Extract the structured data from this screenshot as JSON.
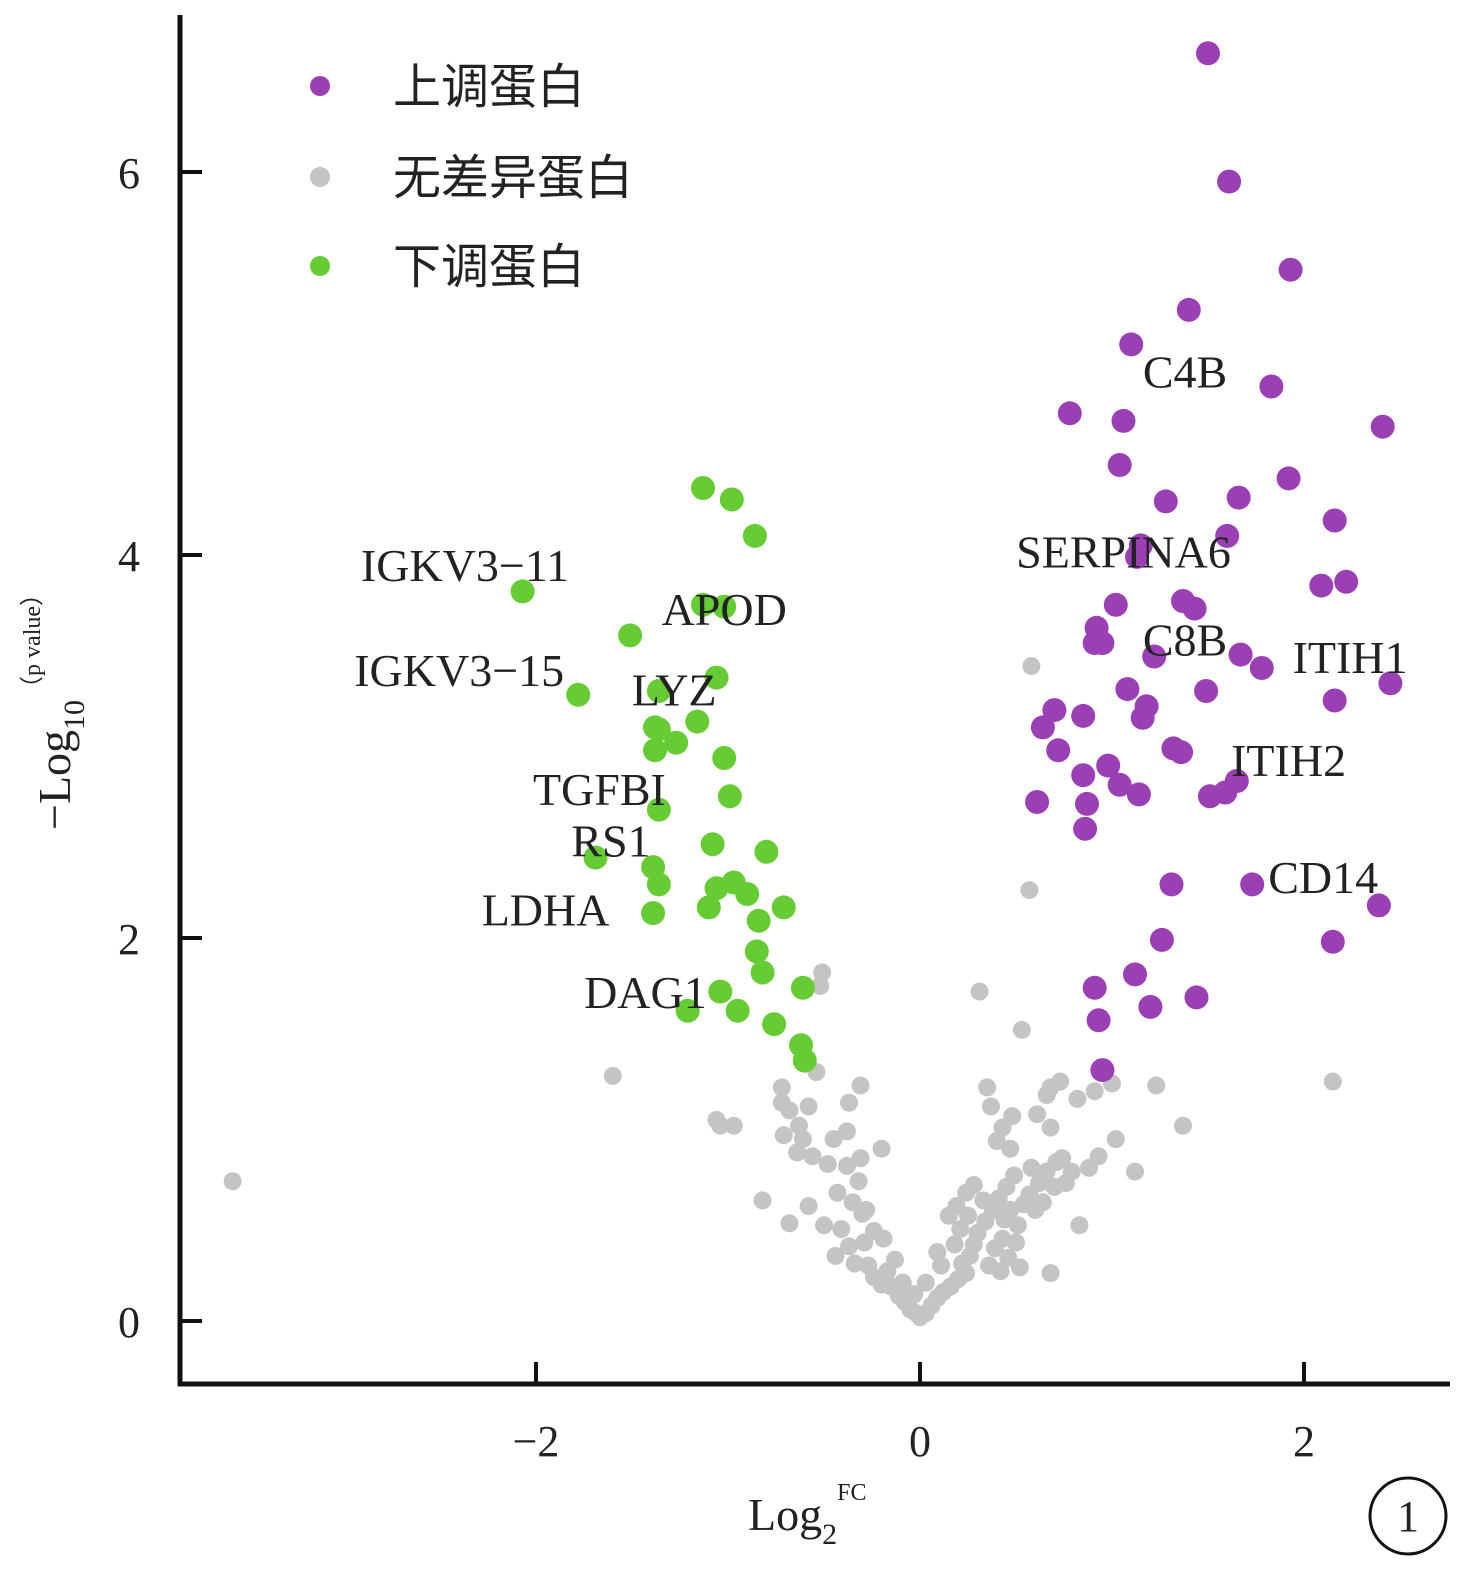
{
  "chart_data": {
    "type": "scatter",
    "title": "",
    "xlabel": {
      "base": "Log",
      "sub": "2",
      "sup": "FC"
    },
    "ylabel": {
      "prefix": "−Log",
      "sub": "10",
      "sup": "（p value）"
    },
    "xlim": [
      -3.8,
      2.8
    ],
    "ylim": [
      -0.3,
      6.8
    ],
    "x_ticks": [
      -2,
      0,
      2
    ],
    "y_ticks": [
      0,
      2,
      4,
      6
    ],
    "x_tick_labels": [
      "−2",
      "0",
      "2"
    ],
    "y_tick_labels": [
      "0",
      "2",
      "4",
      "6"
    ],
    "legend": {
      "position": "top-left"
    },
    "panel_label": "1",
    "series": [
      {
        "name": "上调蛋白",
        "color": "#9b3fb5",
        "points": [
          [
            1.5,
            6.62
          ],
          [
            1.61,
            5.95
          ],
          [
            1.93,
            5.49
          ],
          [
            1.4,
            5.28
          ],
          [
            1.1,
            5.1
          ],
          [
            1.83,
            4.88
          ],
          [
            0.78,
            4.74
          ],
          [
            1.06,
            4.7
          ],
          [
            2.41,
            4.67
          ],
          [
            1.04,
            4.47
          ],
          [
            1.92,
            4.4
          ],
          [
            1.66,
            4.3
          ],
          [
            1.28,
            4.28
          ],
          [
            2.16,
            4.18
          ],
          [
            1.6,
            4.1
          ],
          [
            1.15,
            4.05
          ],
          [
            1.13,
            3.99
          ],
          [
            1.43,
            3.72
          ],
          [
            2.09,
            3.84
          ],
          [
            2.22,
            3.86
          ],
          [
            1.37,
            3.76
          ],
          [
            1.02,
            3.74
          ],
          [
            0.92,
            3.62
          ],
          [
            0.91,
            3.54
          ],
          [
            0.95,
            3.54
          ],
          [
            1.22,
            3.47
          ],
          [
            1.67,
            3.48
          ],
          [
            1.78,
            3.41
          ],
          [
            2.45,
            3.33
          ],
          [
            1.08,
            3.3
          ],
          [
            1.49,
            3.29
          ],
          [
            1.18,
            3.21
          ],
          [
            2.16,
            3.24
          ],
          [
            0.7,
            3.19
          ],
          [
            0.85,
            3.16
          ],
          [
            0.64,
            3.1
          ],
          [
            1.16,
            3.15
          ],
          [
            0.72,
            2.98
          ],
          [
            1.32,
            2.99
          ],
          [
            1.36,
            2.97
          ],
          [
            0.85,
            2.85
          ],
          [
            0.98,
            2.9
          ],
          [
            1.04,
            2.8
          ],
          [
            1.65,
            2.82
          ],
          [
            1.59,
            2.76
          ],
          [
            1.51,
            2.74
          ],
          [
            1.14,
            2.75
          ],
          [
            0.61,
            2.71
          ],
          [
            0.87,
            2.7
          ],
          [
            0.86,
            2.57
          ],
          [
            1.31,
            2.28
          ],
          [
            1.73,
            2.28
          ],
          [
            2.39,
            2.17
          ],
          [
            1.26,
            1.99
          ],
          [
            2.15,
            1.98
          ],
          [
            1.12,
            1.81
          ],
          [
            0.91,
            1.74
          ],
          [
            1.44,
            1.69
          ],
          [
            1.2,
            1.64
          ],
          [
            0.93,
            1.57
          ],
          [
            0.95,
            1.31
          ]
        ]
      },
      {
        "name": "无差异蛋白",
        "color": "#c4c4c4",
        "points": [
          [
            -3.58,
            0.73
          ],
          [
            -1.6,
            1.28
          ],
          [
            -0.51,
            1.82
          ],
          [
            -0.52,
            1.75
          ],
          [
            0.31,
            1.72
          ],
          [
            0.53,
            1.52
          ],
          [
            0.58,
            3.42
          ],
          [
            0.57,
            2.25
          ],
          [
            2.15,
            1.25
          ],
          [
            1.23,
            1.23
          ],
          [
            1.37,
            1.02
          ],
          [
            1.12,
            0.78
          ],
          [
            -0.97,
            1.02
          ],
          [
            -1.06,
            1.05
          ],
          [
            -1.04,
            1.02
          ],
          [
            -0.72,
            1.22
          ],
          [
            -0.72,
            1.14
          ],
          [
            -0.68,
            1.1
          ],
          [
            -0.58,
            1.12
          ],
          [
            -0.63,
            1.02
          ],
          [
            -0.61,
            0.95
          ],
          [
            -0.71,
            0.97
          ],
          [
            -0.64,
            0.88
          ],
          [
            -0.48,
            0.82
          ],
          [
            -0.38,
            0.81
          ],
          [
            -0.32,
            0.73
          ],
          [
            -0.43,
            0.67
          ],
          [
            -0.35,
            0.62
          ],
          [
            -0.28,
            0.58
          ],
          [
            -0.58,
            0.6
          ],
          [
            -0.82,
            0.63
          ],
          [
            -0.68,
            0.51
          ],
          [
            -0.5,
            0.5
          ],
          [
            -0.41,
            0.48
          ],
          [
            -0.24,
            0.47
          ],
          [
            -0.19,
            0.43
          ],
          [
            -0.29,
            0.41
          ],
          [
            -0.37,
            0.39
          ],
          [
            -0.44,
            0.34
          ],
          [
            -0.34,
            0.3
          ],
          [
            -0.27,
            0.29
          ],
          [
            -0.24,
            0.23
          ],
          [
            -0.2,
            0.19
          ],
          [
            -0.15,
            0.18
          ],
          [
            -0.11,
            0.13
          ],
          [
            -0.08,
            0.1
          ],
          [
            -0.05,
            0.06
          ],
          [
            -0.02,
            0.04
          ],
          [
            0.0,
            0.02
          ],
          [
            0.03,
            0.04
          ],
          [
            0.06,
            0.08
          ],
          [
            0.09,
            0.12
          ],
          [
            0.12,
            0.15
          ],
          [
            0.16,
            0.18
          ],
          [
            0.2,
            0.22
          ],
          [
            0.24,
            0.25
          ],
          [
            0.22,
            0.3
          ],
          [
            0.26,
            0.34
          ],
          [
            0.28,
            0.4
          ],
          [
            0.3,
            0.46
          ],
          [
            0.34,
            0.52
          ],
          [
            0.38,
            0.58
          ],
          [
            0.41,
            0.64
          ],
          [
            0.45,
            0.7
          ],
          [
            0.49,
            0.76
          ],
          [
            0.47,
            0.58
          ],
          [
            0.51,
            0.5
          ],
          [
            0.43,
            0.43
          ],
          [
            0.39,
            0.38
          ],
          [
            0.46,
            0.33
          ],
          [
            0.36,
            0.29
          ],
          [
            0.42,
            0.26
          ],
          [
            0.54,
            0.61
          ],
          [
            0.57,
            0.66
          ],
          [
            0.62,
            0.72
          ],
          [
            0.58,
            0.8
          ],
          [
            0.66,
            0.78
          ],
          [
            0.71,
            0.83
          ],
          [
            0.74,
            0.85
          ],
          [
            0.79,
            0.78
          ],
          [
            0.7,
            0.7
          ],
          [
            0.64,
            0.62
          ],
          [
            0.68,
            0.25
          ],
          [
            0.52,
            0.28
          ],
          [
            0.47,
            0.9
          ],
          [
            0.4,
            0.94
          ],
          [
            0.43,
            1.01
          ],
          [
            0.48,
            1.07
          ],
          [
            0.37,
            1.12
          ],
          [
            0.35,
            1.22
          ],
          [
            0.61,
            1.08
          ],
          [
            0.66,
            1.18
          ],
          [
            0.68,
            1.22
          ],
          [
            0.73,
            1.25
          ],
          [
            0.82,
            1.16
          ],
          [
            0.91,
            1.2
          ],
          [
            1.0,
            1.24
          ],
          [
            1.02,
            0.95
          ],
          [
            0.93,
            0.86
          ],
          [
            0.83,
            0.5
          ],
          [
            0.68,
            1.01
          ],
          [
            -0.2,
            0.9
          ],
          [
            -0.31,
            0.85
          ],
          [
            -0.38,
            0.99
          ],
          [
            -0.37,
            1.14
          ],
          [
            -0.31,
            1.23
          ],
          [
            -0.54,
            1.3
          ],
          [
            -0.3,
            0.56
          ],
          [
            -0.45,
            0.95
          ],
          [
            -0.56,
            0.86
          ],
          [
            0.28,
            0.71
          ],
          [
            0.24,
            0.67
          ],
          [
            0.19,
            0.6
          ],
          [
            0.15,
            0.55
          ],
          [
            0.09,
            0.36
          ],
          [
            0.11,
            0.29
          ],
          [
            0.03,
            0.2
          ],
          [
            -0.03,
            0.14
          ],
          [
            -0.09,
            0.2
          ],
          [
            -0.13,
            0.32
          ],
          [
            -0.17,
            0.26
          ],
          [
            0.18,
            0.4
          ],
          [
            0.21,
            0.48
          ],
          [
            0.44,
            0.53
          ],
          [
            0.5,
            0.41
          ],
          [
            0.6,
            0.58
          ],
          [
            0.76,
            0.72
          ],
          [
            0.88,
            0.8
          ],
          [
            0.33,
            0.63
          ],
          [
            0.25,
            0.55
          ]
        ]
      },
      {
        "name": "下调蛋白",
        "color": "#66cc33",
        "points": [
          [
            -1.13,
            4.35
          ],
          [
            -0.98,
            4.29
          ],
          [
            -0.86,
            4.1
          ],
          [
            -2.07,
            3.81
          ],
          [
            -1.13,
            3.74
          ],
          [
            -1.02,
            3.73
          ],
          [
            -1.51,
            3.58
          ],
          [
            -1.06,
            3.36
          ],
          [
            -1.36,
            3.29
          ],
          [
            -1.78,
            3.27
          ],
          [
            -1.16,
            3.13
          ],
          [
            -1.38,
            3.1
          ],
          [
            -1.36,
            3.09
          ],
          [
            -1.27,
            3.02
          ],
          [
            -1.38,
            2.98
          ],
          [
            -1.02,
            2.94
          ],
          [
            -0.99,
            2.74
          ],
          [
            -1.36,
            2.67
          ],
          [
            -1.08,
            2.49
          ],
          [
            -0.8,
            2.45
          ],
          [
            -1.69,
            2.42
          ],
          [
            -1.39,
            2.37
          ],
          [
            -1.36,
            2.28
          ],
          [
            -0.97,
            2.29
          ],
          [
            -1.06,
            2.26
          ],
          [
            -0.9,
            2.23
          ],
          [
            -0.71,
            2.16
          ],
          [
            -1.1,
            2.16
          ],
          [
            -1.39,
            2.13
          ],
          [
            -0.84,
            2.09
          ],
          [
            -0.85,
            1.93
          ],
          [
            -0.82,
            1.82
          ],
          [
            -0.61,
            1.74
          ],
          [
            -1.04,
            1.72
          ],
          [
            -0.95,
            1.62
          ],
          [
            -1.21,
            1.62
          ],
          [
            -0.76,
            1.55
          ],
          [
            -0.62,
            1.44
          ],
          [
            -0.6,
            1.36
          ]
        ]
      }
    ],
    "annotations": [
      {
        "text": "C4B",
        "x": 1.38,
        "y": 4.93
      },
      {
        "text": "SERPINA6",
        "x": 1.06,
        "y": 3.99
      },
      {
        "text": "C8B",
        "x": 1.38,
        "y": 3.53
      },
      {
        "text": "ITIH1",
        "x": 2.24,
        "y": 3.44
      },
      {
        "text": "ITIH2",
        "x": 1.92,
        "y": 2.9
      },
      {
        "text": "CD14",
        "x": 2.1,
        "y": 2.29
      },
      {
        "text": "IGKV3−11",
        "x": -2.37,
        "y": 3.92
      },
      {
        "text": "APOD",
        "x": -1.02,
        "y": 3.69
      },
      {
        "text": "IGKV3−15",
        "x": -2.4,
        "y": 3.37
      },
      {
        "text": "LYZ",
        "x": -1.28,
        "y": 3.27
      },
      {
        "text": "TGFBI",
        "x": -1.67,
        "y": 2.75
      },
      {
        "text": "RS1",
        "x": -1.61,
        "y": 2.48
      },
      {
        "text": "LDHA",
        "x": -1.95,
        "y": 2.12
      },
      {
        "text": "DAG1",
        "x": -1.43,
        "y": 1.69
      }
    ]
  }
}
